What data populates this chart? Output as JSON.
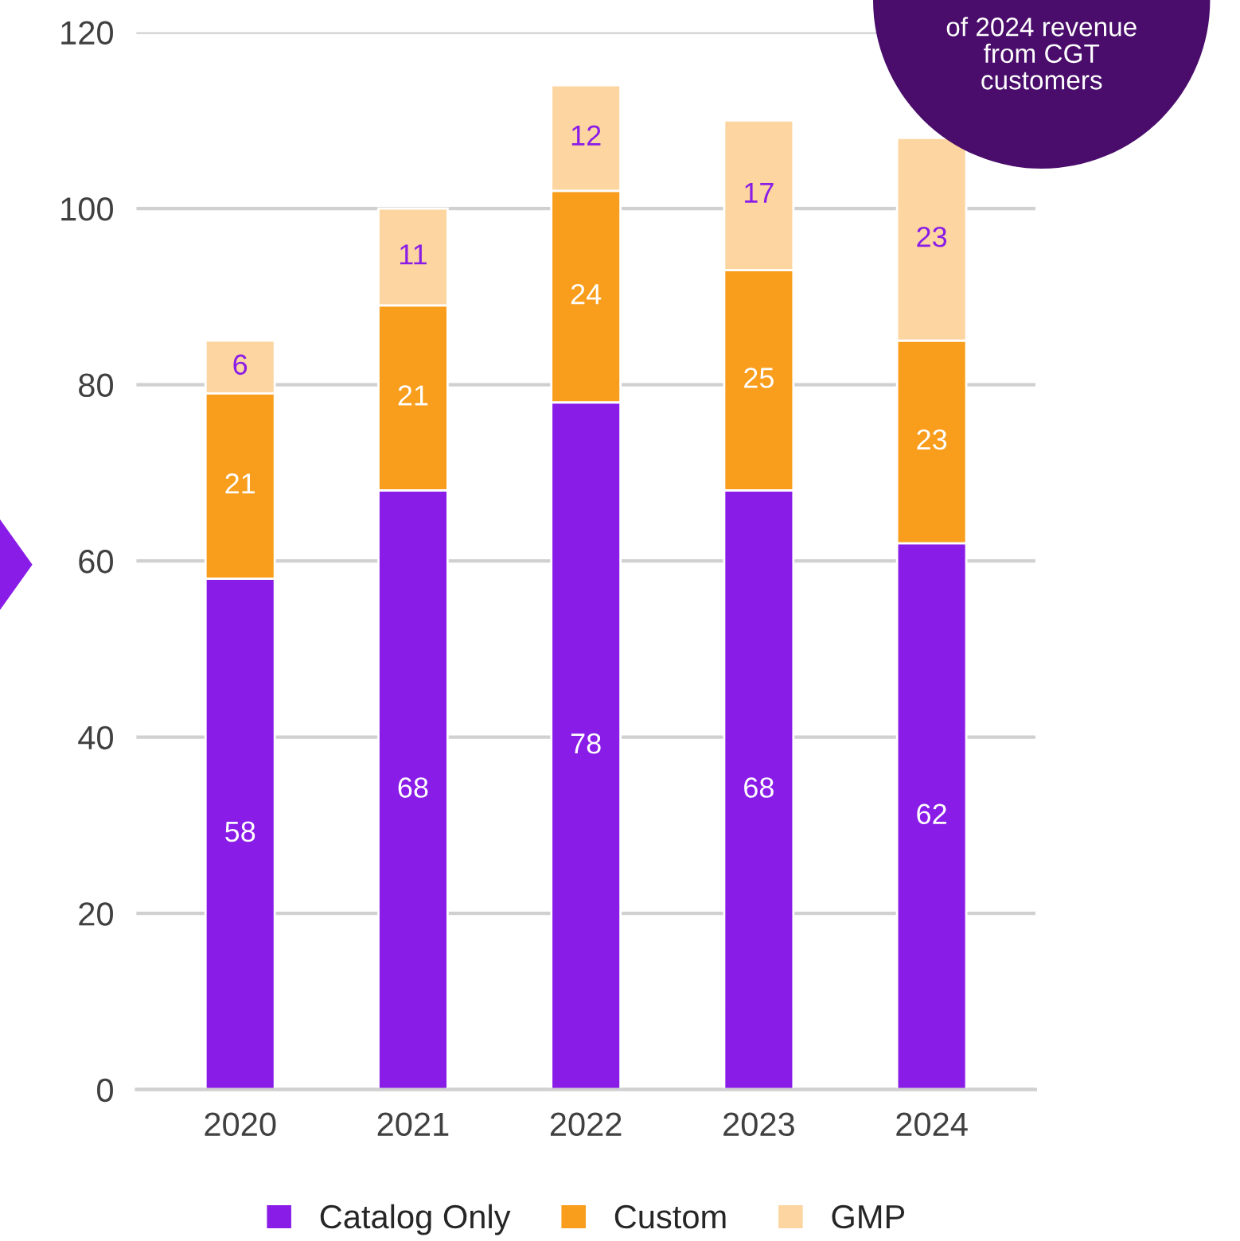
{
  "chart_data": {
    "type": "bar",
    "stacked": true,
    "categories": [
      "2020",
      "2021",
      "2022",
      "2023",
      "2024"
    ],
    "series": [
      {
        "name": "Catalog Only",
        "color": "#8a1ce8",
        "values": [
          58,
          68,
          78,
          68,
          62
        ]
      },
      {
        "name": "Custom",
        "color": "#f99d1c",
        "values": [
          21,
          21,
          24,
          25,
          23
        ]
      },
      {
        "name": "GMP",
        "color": "#fdd5a0",
        "values": [
          6,
          11,
          12,
          17,
          23
        ]
      }
    ],
    "ylim": [
      0,
      120
    ],
    "yticks": [
      0,
      20,
      40,
      60,
      80,
      100,
      120
    ],
    "grid": "y",
    "legend": "bottom",
    "data_labels": true,
    "annotations": [
      "of 2024 revenue\nfrom CGT\ncustomers"
    ]
  }
}
